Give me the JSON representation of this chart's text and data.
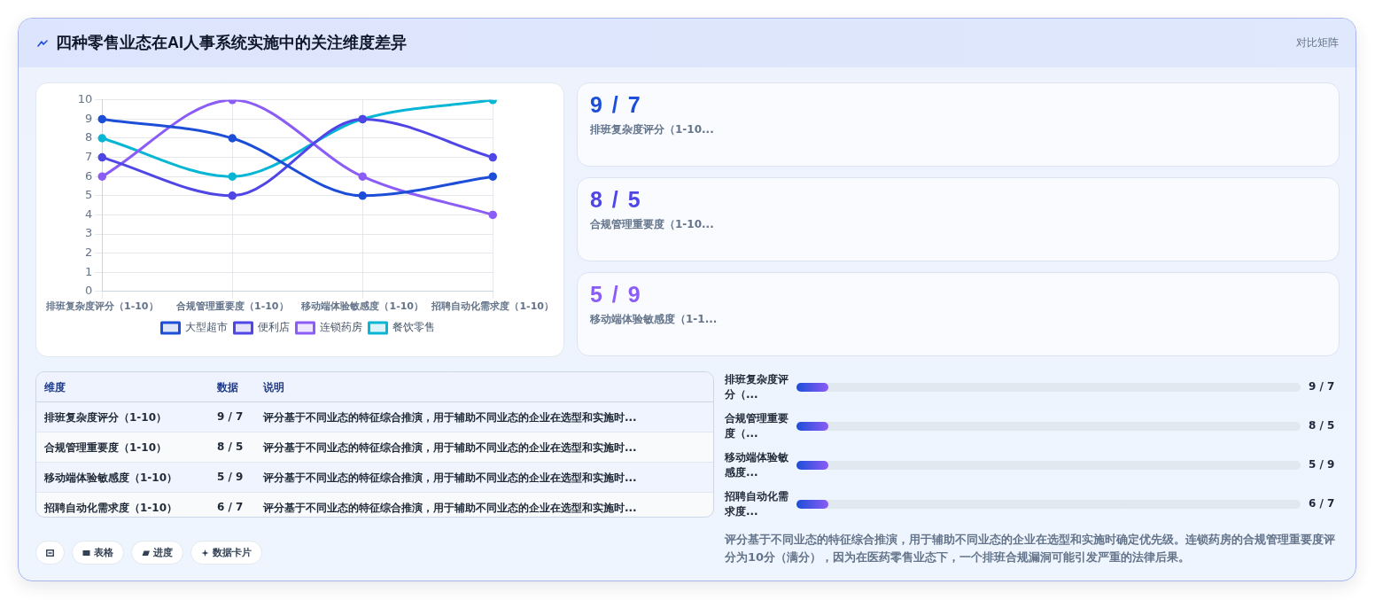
{
  "chart_data": [
    {
      "type": "line",
      "title": "四种零售业态在AI人事系统实施中的关注维度差异",
      "annotations": [
        "对比矩阵"
      ],
      "categories": [
        "排班复杂度评分（1-10）",
        "合规管理重要度（1-10）",
        "移动端体验敏感度（1-10）",
        "招聘自动化需求度（1-10）"
      ],
      "series": [
        {
          "name": "大型超市",
          "color": "#1d4ed8",
          "values": [
            9,
            8,
            5,
            6
          ]
        },
        {
          "name": "便利店",
          "color": "#4f46e5",
          "values": [
            7,
            5,
            9,
            7
          ]
        },
        {
          "name": "连锁药房",
          "color": "#8b5cf6",
          "values": [
            6,
            10,
            6,
            4
          ]
        },
        {
          "name": "餐饮零售",
          "color": "#06b6d4",
          "values": [
            8,
            6,
            9,
            10
          ]
        }
      ],
      "ylim": [
        0,
        10
      ],
      "yticks": [
        0,
        1,
        2,
        3,
        4,
        5,
        6,
        7,
        8,
        9,
        10
      ],
      "grid": true,
      "legend": "bottom",
      "marker": "circle"
    },
    {
      "type": "other",
      "categories": [
        "排班复杂度评分（1-10...",
        "合规管理重要度（1-10...",
        "移动端体验敏感度（1-1..."
      ],
      "value_labels": [
        "9 / 7",
        "8 / 5",
        "5 / 9"
      ]
    },
    {
      "type": "other",
      "categories": [
        "排班复杂度评分（1-10）",
        "合规管理重要度（1-10）",
        "移动端体验敏感度（1-10）",
        "招聘自动化需求度（1-10）"
      ],
      "value_labels": [
        "9 / 7",
        "8 / 5",
        "5 / 9",
        "6 / 7"
      ],
      "annotations": [
        "维度",
        "数据",
        "说明",
        "评分基于不同业态的特征综合推演，用于辅助不同业态的企业在选型和实施时...",
        "评分基于不同业态的特征综合推演，用于辅助不同业态的企业在选型和实施时...",
        "评分基于不同业态的特征综合推演，用于辅助不同业态的企业在选型和实施时...",
        "评分基于不同业态的特征综合推演，用于辅助不同业态的企业在选型和实施时..."
      ]
    },
    {
      "type": "other",
      "categories": [
        "排班复杂度评分（...",
        "合规管理重要度（...",
        "移动端体验敏感度...",
        "招聘自动化需求度..."
      ],
      "value_labels": [
        "9 / 7",
        "8 / 5",
        "5 / 9",
        "6 / 7"
      ],
      "annotations": [
        "评分基于不同业态的特征综合推演，用于辅助不同业态的企业在选型和实施时确定优先级。连锁药房的合规管理重要度评分为10分（满分），因为在医药零售业态下，一个排班合规漏洞可能引发严重的法律后果。"
      ]
    },
    {
      "type": "other",
      "categories": [
        null,
        "表格",
        "进度",
        "数据卡片"
      ]
    }
  ]
}
